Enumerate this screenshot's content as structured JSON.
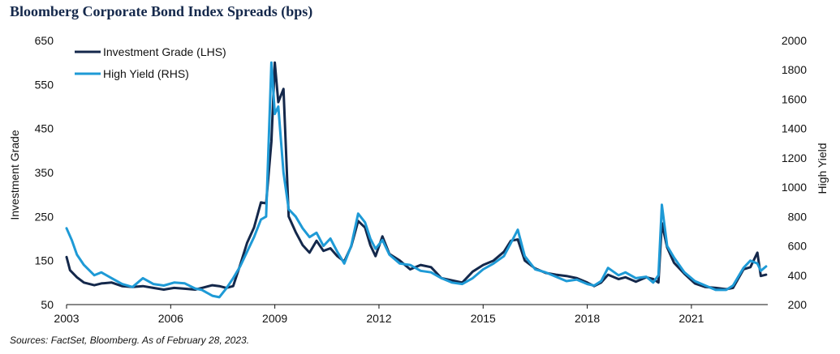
{
  "title": "Bloomberg Corporate Bond Index Spreads (bps)",
  "source": "Sources: FactSet, Bloomberg. As of February 28, 2023.",
  "colors": {
    "ig": "#14284b",
    "hy": "#1e9ad6",
    "axis": "#111111"
  },
  "chart_data": {
    "type": "line",
    "title": "Bloomberg Corporate Bond Index Spreads (bps)",
    "xlabel": "",
    "ylabel_left": "Investment Grade",
    "ylabel_right": "High Yield",
    "xlim": [
      2003,
      2023.2
    ],
    "ylim_left": [
      50,
      650
    ],
    "ylim_right": [
      200,
      2000
    ],
    "x_ticks": [
      "2003",
      "2006",
      "2009",
      "2012",
      "2015",
      "2018",
      "2021"
    ],
    "y_ticks_left": [
      "650",
      "550",
      "450",
      "350",
      "250",
      "150",
      "50"
    ],
    "y_ticks_right": [
      "2000",
      "1800",
      "1600",
      "1400",
      "1200",
      "1000",
      "800",
      "600",
      "400",
      "200"
    ],
    "legend_position": "top-left",
    "grid": false,
    "series": [
      {
        "name": "Investment Grade (LHS)",
        "axis": "left",
        "x": [
          2003.0,
          2003.1,
          2003.3,
          2003.5,
          2003.8,
          2004.0,
          2004.3,
          2004.6,
          2004.9,
          2005.2,
          2005.5,
          2005.8,
          2006.1,
          2006.4,
          2006.7,
          2006.9,
          2007.2,
          2007.4,
          2007.6,
          2007.8,
          2008.0,
          2008.2,
          2008.4,
          2008.6,
          2008.75,
          2008.9,
          2009.0,
          2009.1,
          2009.25,
          2009.4,
          2009.6,
          2009.8,
          2010.0,
          2010.2,
          2010.4,
          2010.6,
          2010.8,
          2011.0,
          2011.2,
          2011.4,
          2011.6,
          2011.75,
          2011.9,
          2012.1,
          2012.3,
          2012.6,
          2012.9,
          2013.2,
          2013.5,
          2013.8,
          2014.1,
          2014.4,
          2014.7,
          2015.0,
          2015.3,
          2015.6,
          2015.8,
          2016.0,
          2016.2,
          2016.5,
          2016.8,
          2017.1,
          2017.4,
          2017.7,
          2018.0,
          2018.2,
          2018.4,
          2018.6,
          2018.9,
          2019.1,
          2019.4,
          2019.7,
          2019.9,
          2020.05,
          2020.15,
          2020.3,
          2020.5,
          2020.8,
          2021.1,
          2021.4,
          2021.7,
          2022.0,
          2022.2,
          2022.5,
          2022.7,
          2022.9,
          2023.0,
          2023.15
        ],
        "values": [
          158,
          128,
          112,
          100,
          94,
          98,
          100,
          92,
          90,
          92,
          88,
          84,
          88,
          86,
          84,
          88,
          94,
          92,
          88,
          92,
          140,
          190,
          225,
          282,
          280,
          420,
          600,
          510,
          540,
          250,
          215,
          185,
          168,
          195,
          172,
          178,
          160,
          148,
          182,
          240,
          225,
          185,
          160,
          205,
          165,
          150,
          130,
          140,
          135,
          110,
          105,
          100,
          125,
          140,
          150,
          170,
          195,
          198,
          150,
          132,
          122,
          118,
          115,
          110,
          100,
          92,
          100,
          118,
          108,
          112,
          102,
          112,
          108,
          100,
          235,
          180,
          145,
          120,
          98,
          90,
          88,
          85,
          88,
          130,
          135,
          168,
          115,
          118
        ]
      },
      {
        "name": "High Yield (RHS)",
        "axis": "right",
        "x": [
          2003.0,
          2003.15,
          2003.3,
          2003.5,
          2003.8,
          2004.0,
          2004.3,
          2004.6,
          2004.9,
          2005.2,
          2005.5,
          2005.8,
          2006.1,
          2006.4,
          2006.7,
          2006.9,
          2007.2,
          2007.4,
          2007.6,
          2007.8,
          2008.0,
          2008.2,
          2008.4,
          2008.6,
          2008.75,
          2008.9,
          2009.0,
          2009.1,
          2009.25,
          2009.4,
          2009.6,
          2009.8,
          2010.0,
          2010.2,
          2010.4,
          2010.6,
          2010.8,
          2011.0,
          2011.2,
          2011.4,
          2011.6,
          2011.75,
          2011.9,
          2012.1,
          2012.3,
          2012.6,
          2012.9,
          2013.2,
          2013.5,
          2013.8,
          2014.1,
          2014.4,
          2014.7,
          2015.0,
          2015.3,
          2015.6,
          2015.8,
          2016.0,
          2016.2,
          2016.5,
          2016.8,
          2017.1,
          2017.4,
          2017.7,
          2018.0,
          2018.2,
          2018.4,
          2018.6,
          2018.9,
          2019.1,
          2019.4,
          2019.7,
          2019.9,
          2020.05,
          2020.15,
          2020.3,
          2020.5,
          2020.8,
          2021.1,
          2021.4,
          2021.7,
          2022.0,
          2022.2,
          2022.5,
          2022.7,
          2022.9,
          2023.0,
          2023.15
        ],
        "values": [
          720,
          640,
          540,
          470,
          400,
          420,
          380,
          340,
          320,
          380,
          340,
          330,
          350,
          345,
          310,
          300,
          260,
          250,
          310,
          380,
          460,
          560,
          660,
          780,
          800,
          1850,
          1500,
          1550,
          1100,
          850,
          800,
          720,
          660,
          690,
          600,
          650,
          560,
          480,
          600,
          820,
          760,
          650,
          580,
          640,
          540,
          480,
          470,
          430,
          420,
          380,
          350,
          340,
          380,
          440,
          480,
          530,
          620,
          710,
          530,
          440,
          420,
          390,
          360,
          370,
          340,
          330,
          360,
          450,
          400,
          420,
          380,
          390,
          350,
          400,
          880,
          600,
          520,
          420,
          360,
          330,
          300,
          300,
          330,
          450,
          500,
          480,
          430,
          460
        ]
      }
    ]
  }
}
